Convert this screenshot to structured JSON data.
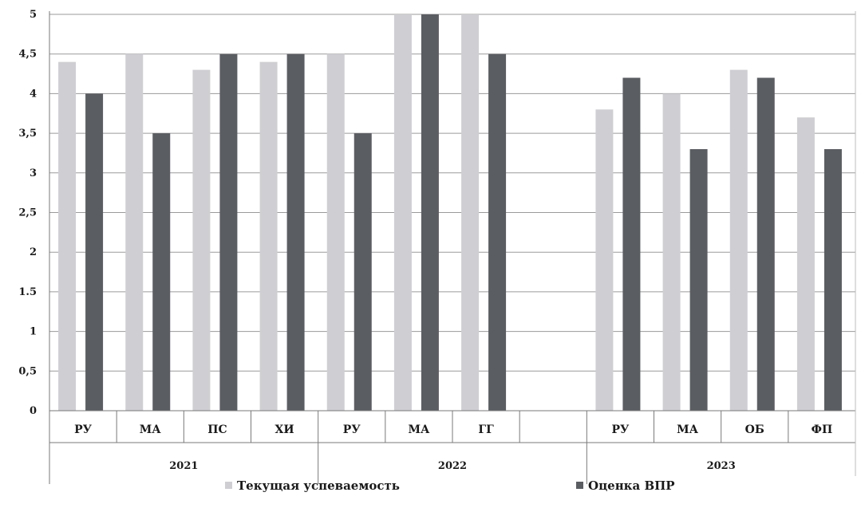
{
  "chart_data": {
    "type": "bar",
    "ylim": [
      0,
      5
    ],
    "yticks": [
      "0",
      "0,5",
      "1",
      "1.5",
      "2",
      "2,5",
      "3",
      "3,5",
      "4",
      "4,5",
      "5"
    ],
    "grid": true,
    "legend_position": "bottom",
    "categories": [
      "РУ",
      "МА",
      "ПС",
      "ХИ",
      "РУ",
      "МА",
      "ГГ",
      "",
      "РУ",
      "МА",
      "ОБ",
      "ФП"
    ],
    "groups": [
      {
        "label": "2021",
        "span": 4
      },
      {
        "label": "2022",
        "span": 4
      },
      {
        "label": "2023",
        "span": 4
      }
    ],
    "series": [
      {
        "name": "Текущая успеваемость",
        "color": "#cfcfd3",
        "values": [
          4.4,
          4.5,
          4.3,
          4.4,
          4.5,
          5,
          5,
          null,
          3.8,
          4.0,
          4.3,
          3.7
        ]
      },
      {
        "name": "Оценка ВПР",
        "color": "#5a5d62",
        "values": [
          4.0,
          3.5,
          4.5,
          4.5,
          3.5,
          5,
          4.5,
          null,
          4.2,
          3.3,
          4.2,
          3.3
        ]
      }
    ]
  }
}
